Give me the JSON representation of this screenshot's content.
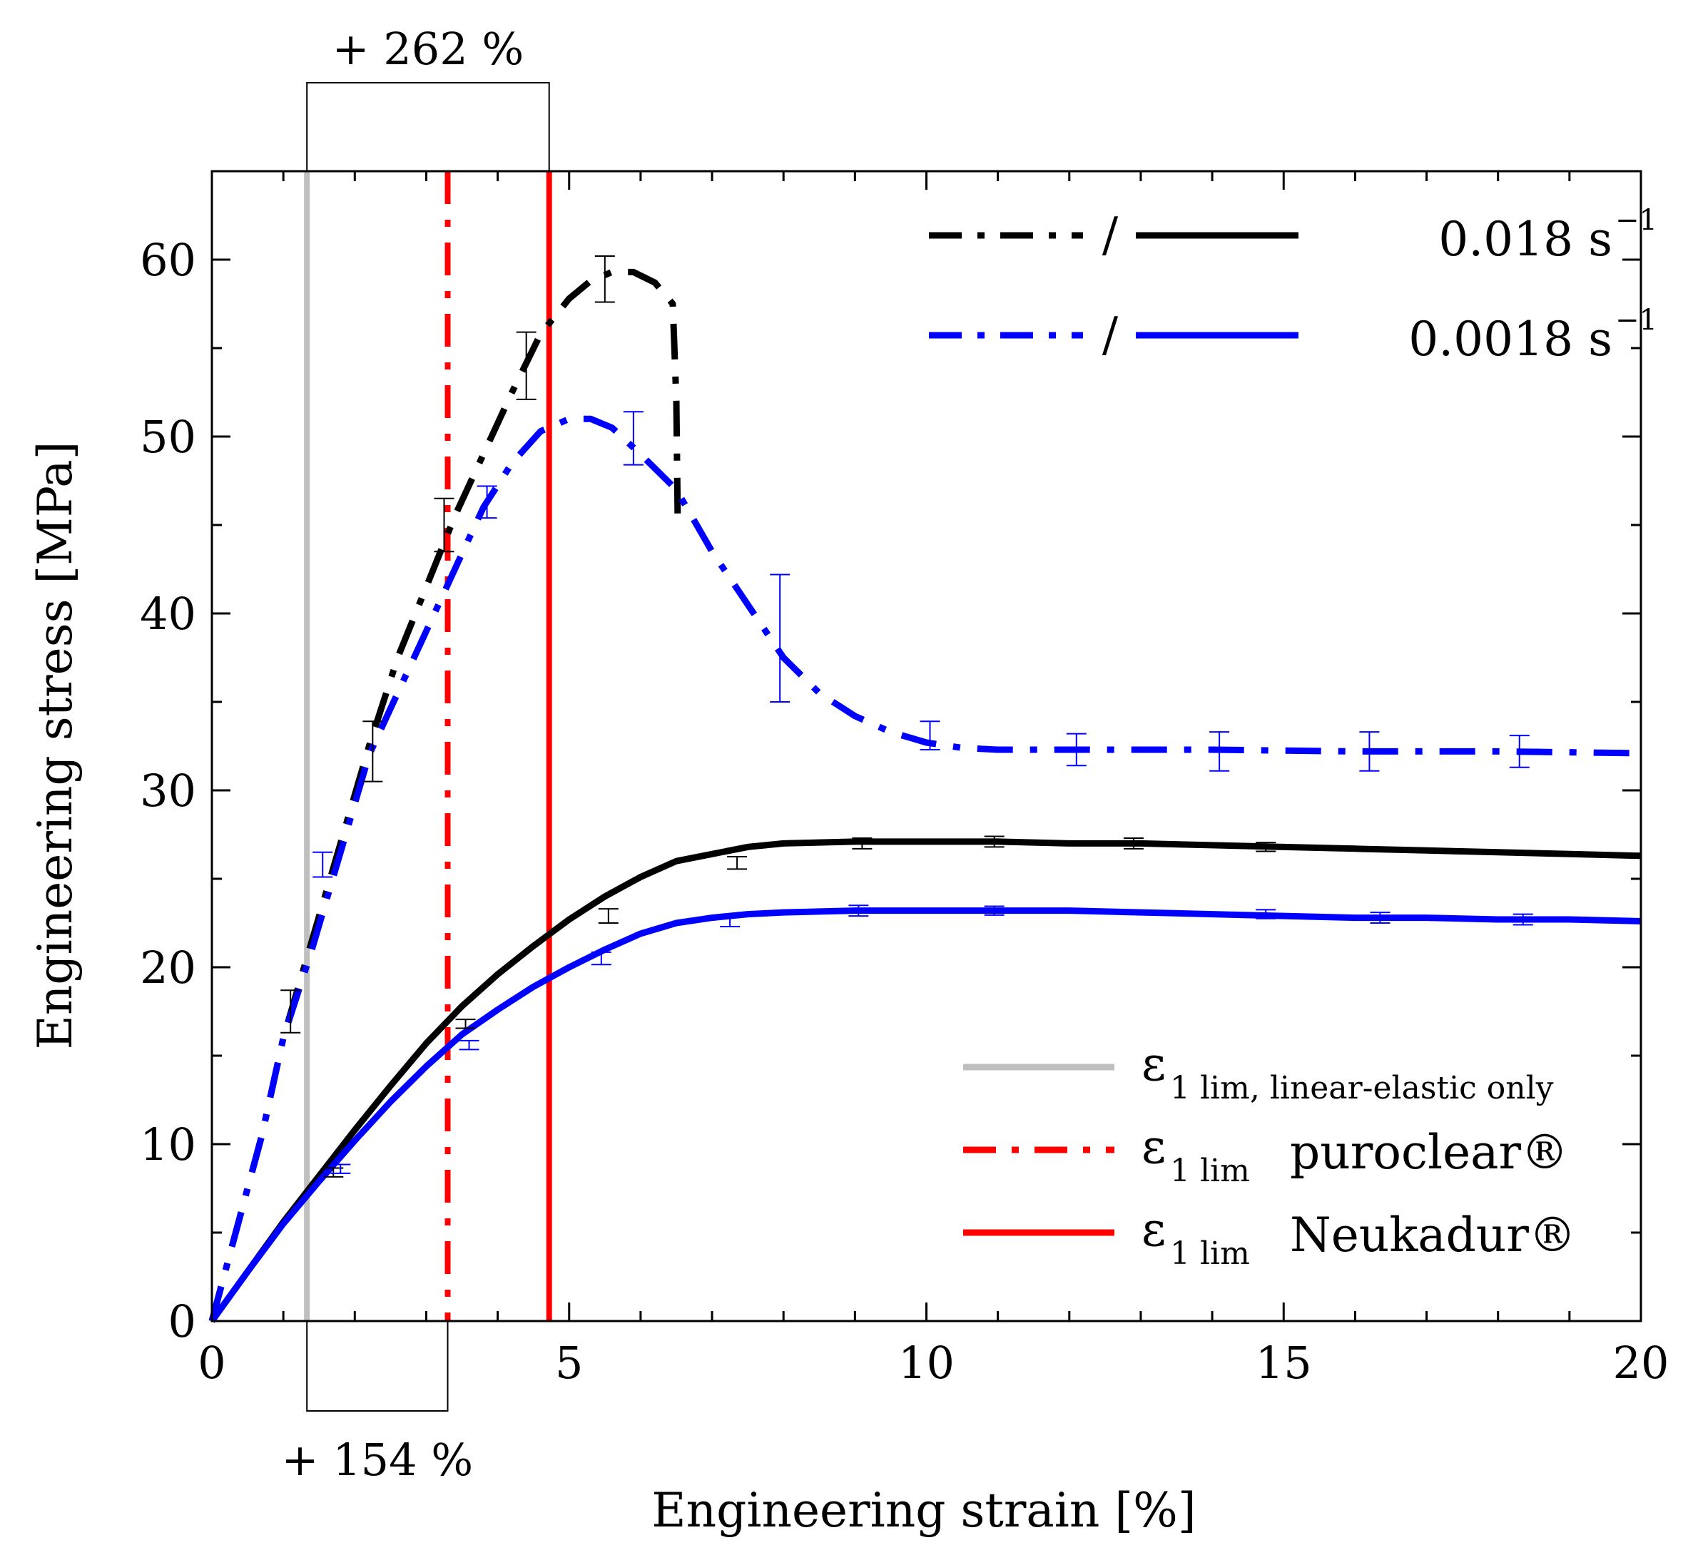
{
  "chart_data": {
    "type": "line",
    "title": "",
    "xlabel": "Engineering strain [%]",
    "ylabel": "Engineering stress [MPa]",
    "xlim": [
      0,
      20
    ],
    "ylim": [
      0,
      65
    ],
    "xticks": [
      0,
      5,
      10,
      15,
      20
    ],
    "yticks": [
      0,
      10,
      20,
      30,
      40,
      50,
      60
    ],
    "grid": false,
    "legend_position": "top-right",
    "series": [
      {
        "name": "0.018 s-1 dash-dot",
        "color": "#000000",
        "style": "dashdot",
        "x": [
          0,
          0.3,
          0.7,
          1.0,
          1.4,
          1.8,
          2.2,
          2.6,
          3.0,
          3.4,
          3.8,
          4.2,
          4.6,
          5.0,
          5.3,
          5.6,
          5.9,
          6.2,
          6.45,
          6.5,
          6.52
        ],
        "y": [
          0,
          4.5,
          10.5,
          16.0,
          21.5,
          27.0,
          32.5,
          37.5,
          41.5,
          45.5,
          49.0,
          52.5,
          55.8,
          57.8,
          58.8,
          59.3,
          59.3,
          58.7,
          57.5,
          52.0,
          45.0
        ]
      },
      {
        "name": "0.0018 s-1 dash-dot",
        "color": "#0000ff",
        "style": "dashdot",
        "x": [
          0,
          0.3,
          0.7,
          1.0,
          1.4,
          1.8,
          2.2,
          2.6,
          3.0,
          3.4,
          3.8,
          4.2,
          4.6,
          5.0,
          5.3,
          5.6,
          6.0,
          6.5,
          7.0,
          7.5,
          8.0,
          8.5,
          9.0,
          9.5,
          10.0,
          10.5,
          11.0,
          12.0,
          14.0,
          16.0,
          18.0,
          20.0
        ],
        "y": [
          0,
          4.5,
          10.5,
          16.0,
          21.0,
          26.5,
          32.0,
          35.5,
          39.0,
          42.5,
          46.0,
          48.5,
          50.3,
          51.0,
          51.0,
          50.5,
          49.0,
          47.0,
          43.5,
          40.5,
          37.5,
          35.5,
          34.2,
          33.3,
          32.7,
          32.4,
          32.3,
          32.3,
          32.3,
          32.2,
          32.2,
          32.1
        ]
      },
      {
        "name": "0.018 s-1 solid",
        "color": "#000000",
        "style": "solid",
        "x": [
          0,
          0.5,
          1.0,
          1.5,
          2.0,
          2.5,
          3.0,
          3.5,
          4.0,
          4.5,
          5.0,
          5.5,
          6.0,
          6.5,
          7.0,
          7.5,
          8.0,
          9.0,
          10.0,
          11.0,
          12.0,
          13.0,
          14.0,
          15.0,
          16.0,
          17.0,
          18.0,
          19.0,
          20.0
        ],
        "y": [
          0,
          2.8,
          5.6,
          8.2,
          10.8,
          13.3,
          15.7,
          17.8,
          19.6,
          21.2,
          22.7,
          24.0,
          25.1,
          26.0,
          26.4,
          26.8,
          27.0,
          27.1,
          27.1,
          27.1,
          27.0,
          27.0,
          26.9,
          26.8,
          26.7,
          26.6,
          26.5,
          26.4,
          26.3
        ]
      },
      {
        "name": "0.0018 s-1 solid",
        "color": "#0000ff",
        "style": "solid",
        "x": [
          0,
          0.5,
          1.0,
          1.5,
          2.0,
          2.5,
          3.0,
          3.5,
          4.0,
          4.5,
          5.0,
          5.5,
          6.0,
          6.5,
          7.0,
          7.5,
          8.0,
          9.0,
          10.0,
          11.0,
          12.0,
          13.0,
          14.0,
          15.0,
          16.0,
          17.0,
          18.0,
          19.0,
          20.0
        ],
        "y": [
          0,
          2.8,
          5.5,
          7.9,
          10.2,
          12.4,
          14.4,
          16.2,
          17.6,
          18.9,
          20.0,
          21.0,
          21.9,
          22.5,
          22.8,
          23.0,
          23.1,
          23.2,
          23.2,
          23.2,
          23.2,
          23.1,
          23.0,
          22.9,
          22.8,
          22.8,
          22.7,
          22.7,
          22.6
        ]
      }
    ],
    "error_bars": [
      {
        "color": "#000000",
        "x": [
          1.1,
          2.25,
          3.25,
          4.4,
          5.5
        ],
        "y": [
          17.5,
          32.2,
          45.0,
          54.0,
          58.9
        ],
        "err": [
          1.2,
          1.7,
          1.5,
          1.9,
          1.3
        ]
      },
      {
        "color": "#0000ff",
        "x": [
          1.55,
          3.85,
          5.9,
          7.95,
          10.05,
          12.1,
          14.1,
          16.2,
          18.3
        ],
        "y": [
          25.8,
          46.3,
          49.9,
          38.6,
          33.1,
          32.3,
          32.2,
          32.2,
          32.2
        ],
        "err": [
          0.7,
          0.9,
          1.5,
          3.6,
          0.8,
          0.9,
          1.1,
          1.1,
          0.9
        ]
      },
      {
        "color": "#000000",
        "x": [
          1.7,
          3.55,
          5.55,
          7.35,
          9.1,
          10.95,
          12.9,
          14.75
        ],
        "y": [
          8.4,
          16.8,
          22.9,
          25.9,
          27.0,
          27.1,
          27.0,
          26.8
        ],
        "err": [
          0.25,
          0.25,
          0.4,
          0.35,
          0.3,
          0.3,
          0.3,
          0.25
        ]
      },
      {
        "color": "#0000ff",
        "x": [
          1.8,
          3.6,
          5.45,
          7.25,
          9.05,
          10.95,
          14.75,
          16.35,
          18.35
        ],
        "y": [
          8.6,
          15.6,
          20.5,
          22.6,
          23.2,
          23.2,
          23.0,
          22.8,
          22.7
        ],
        "err": [
          0.25,
          0.25,
          0.35,
          0.3,
          0.3,
          0.25,
          0.25,
          0.3,
          0.3
        ]
      }
    ],
    "vertical_lines": [
      {
        "name": "linear-elastic limit",
        "x": 1.33,
        "color": "#bfbfbf",
        "style": "solid"
      },
      {
        "name": "puroclear limit",
        "x": 3.3,
        "color": "#ff0000",
        "style": "dashdot"
      },
      {
        "name": "Neukadur limit",
        "x": 4.72,
        "color": "#ff0000",
        "style": "solid"
      }
    ],
    "annotations": [
      {
        "text": "+ 262 %",
        "x_from": 1.33,
        "x_to": 4.72,
        "position": "above"
      },
      {
        "text": "+ 154 %",
        "x_from": 1.33,
        "x_to": 3.3,
        "position": "below"
      }
    ],
    "legend_rates": [
      {
        "label": "0.018 s",
        "sup": "−1",
        "color": "#000000",
        "separator": "/"
      },
      {
        "label": "0.0018 s",
        "sup": "−1",
        "color": "#0000ff",
        "separator": "/"
      }
    ],
    "legend_limits": [
      {
        "symbol": "ε",
        "sub": "1 lim, linear-elastic only",
        "label": "",
        "color": "#bfbfbf",
        "style": "solid"
      },
      {
        "symbol": "ε",
        "sub": "1 lim",
        "label": "puroclear®",
        "color": "#ff0000",
        "style": "dashdot"
      },
      {
        "symbol": "ε",
        "sub": "1 lim",
        "label": "Neukadur®",
        "color": "#ff0000",
        "style": "solid"
      }
    ]
  }
}
